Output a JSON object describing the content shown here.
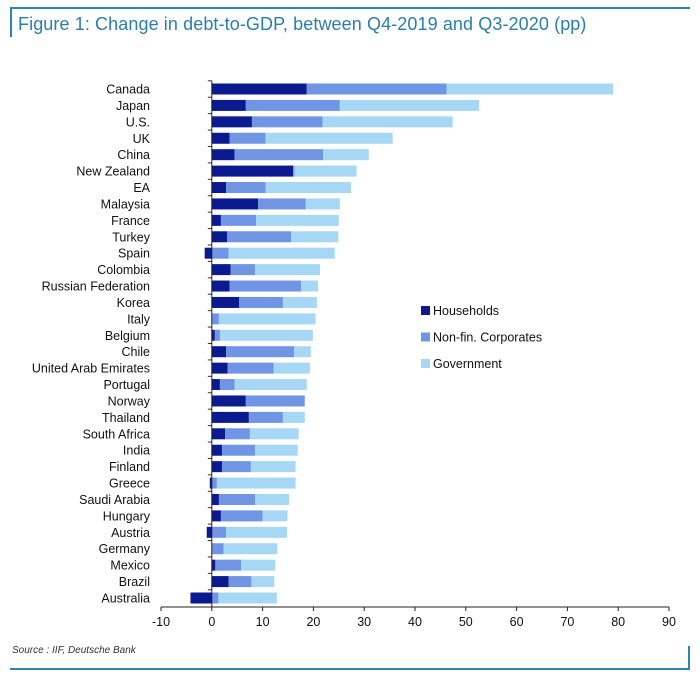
{
  "header": {
    "title": "Figure 1: Change in debt-to-GDP, between Q4-2019 and Q3-2020 (pp)"
  },
  "footer": {
    "source": "Source : IIF, Deutsche Bank"
  },
  "chart_data": {
    "type": "bar",
    "orientation": "horizontal",
    "stacked": true,
    "title": "Figure 1: Change in debt-to-GDP, between Q4-2019 and Q3-2020 (pp)",
    "xlabel": "",
    "ylabel": "",
    "xlim": [
      -10,
      90
    ],
    "xticks": [
      -10,
      0,
      10,
      20,
      30,
      40,
      50,
      60,
      70,
      80,
      90
    ],
    "grid": false,
    "legend_position": "center-right",
    "categories": [
      "Canada",
      "Japan",
      "U.S.",
      "UK",
      "China",
      "New Zealand",
      "EA",
      "Malaysia",
      "France",
      "Turkey",
      "Spain",
      "Colombia",
      "Russian Federation",
      "Korea",
      "Italy",
      "Belgium",
      "Chile",
      "United Arab Emirates",
      "Portugal",
      "Norway",
      "Thailand",
      "South Africa",
      "India",
      "Finland",
      "Greece",
      "Saudi Arabia",
      "Hungary",
      "Austria",
      "Germany",
      "Mexico",
      "Brazil",
      "Australia"
    ],
    "series": [
      {
        "name": "Households",
        "color": "#0b1a8f",
        "values": [
          18.7,
          6.7,
          7.9,
          3.5,
          4.5,
          16.0,
          2.8,
          9.1,
          1.8,
          3.0,
          -1.4,
          3.7,
          3.5,
          5.4,
          0.0,
          0.6,
          2.8,
          3.1,
          1.6,
          6.7,
          7.3,
          2.6,
          2.0,
          2.0,
          -0.4,
          1.4,
          1.8,
          -1.0,
          0.0,
          0.7,
          3.3,
          -4.2
        ]
      },
      {
        "name": "Non-fin. Corporates",
        "color": "#6f95e4",
        "values": [
          27.5,
          18.5,
          13.9,
          7.1,
          17.4,
          0.3,
          7.8,
          9.4,
          6.9,
          12.6,
          3.3,
          4.8,
          14.1,
          8.6,
          1.4,
          1.0,
          13.4,
          9.1,
          2.9,
          11.6,
          6.7,
          4.9,
          6.5,
          5.7,
          1.0,
          7.1,
          8.2,
          2.8,
          2.3,
          5.1,
          4.5,
          1.3
        ]
      },
      {
        "name": "Government",
        "color": "#a6d8f6",
        "values": [
          32.8,
          27.4,
          25.6,
          25.0,
          9.0,
          12.2,
          16.8,
          6.7,
          16.3,
          9.3,
          20.9,
          12.8,
          3.3,
          6.7,
          19.0,
          18.3,
          3.3,
          7.1,
          14.2,
          0.0,
          4.3,
          9.6,
          8.4,
          8.8,
          15.5,
          6.7,
          4.9,
          12.0,
          10.6,
          6.7,
          4.5,
          11.5
        ]
      }
    ]
  }
}
